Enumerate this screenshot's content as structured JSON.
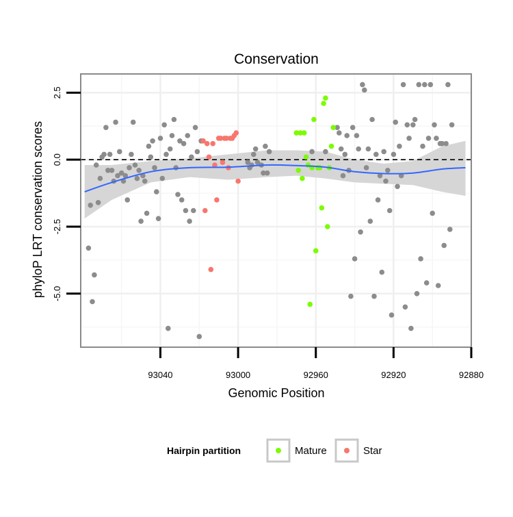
{
  "chart_data": {
    "type": "scatter",
    "title": "Conservation",
    "xlabel": "Genomic Position",
    "ylabel": "phyloP LRT conservation scores",
    "x_reversed": true,
    "xlim": [
      93081,
      92880
    ],
    "ylim": [
      -7.0,
      3.2
    ],
    "x_ticks": [
      93040,
      93000,
      92960,
      92920,
      92880
    ],
    "x_tick_labels": [
      "93040",
      "93000",
      "92960",
      "92920",
      "92880"
    ],
    "y_ticks": [
      2.5,
      0.0,
      -2.5,
      -5.0
    ],
    "y_tick_labels": [
      "2.5",
      "0.0",
      "-2.5",
      "-5.0"
    ],
    "reference_line_y": 0,
    "grid": true,
    "legend": {
      "title": "Hairpin partition",
      "position": "bottom",
      "entries": [
        {
          "label": "Mature",
          "color": "#7cfc00"
        },
        {
          "label": "Star",
          "color": "#f8766d"
        }
      ]
    },
    "colors": {
      "other": "#8c8c8c",
      "mature": "#7cfc00",
      "star": "#f8766d",
      "smooth": "#3366ff",
      "band": "#d4d4d4"
    },
    "series": [
      {
        "key": "other",
        "points": [
          [
            93077,
            -3.3
          ],
          [
            93076,
            -1.7
          ],
          [
            93075,
            -5.3
          ],
          [
            93074,
            -4.3
          ],
          [
            93073,
            -0.2
          ],
          [
            93072,
            -1.6
          ],
          [
            93071,
            -0.7
          ],
          [
            93070,
            0.1
          ],
          [
            93069,
            0.2
          ],
          [
            93068,
            1.2
          ],
          [
            93067,
            -0.4
          ],
          [
            93066,
            0.2
          ],
          [
            93065,
            -0.4
          ],
          [
            93064,
            -0.8
          ],
          [
            93063,
            1.4
          ],
          [
            93062,
            -0.6
          ],
          [
            93061,
            0.3
          ],
          [
            93060,
            -0.5
          ],
          [
            93059,
            -0.8
          ],
          [
            93058,
            -0.6
          ],
          [
            93057,
            -1.5
          ],
          [
            93056,
            -0.3
          ],
          [
            93055,
            0.2
          ],
          [
            93054,
            1.4
          ],
          [
            93053,
            -0.2
          ],
          [
            93052,
            -0.7
          ],
          [
            93051,
            -0.4
          ],
          [
            93050,
            -2.3
          ],
          [
            93049,
            -0.6
          ],
          [
            93048,
            -0.8
          ],
          [
            93047,
            -2.0
          ],
          [
            93046,
            0.5
          ],
          [
            93045,
            0.1
          ],
          [
            93044,
            0.7
          ],
          [
            93043,
            -0.3
          ],
          [
            93042,
            -1.2
          ],
          [
            93041,
            -2.2
          ],
          [
            93040,
            0.8
          ],
          [
            93039,
            -0.7
          ],
          [
            93038,
            1.3
          ],
          [
            93037,
            0.2
          ],
          [
            93036,
            -6.3
          ],
          [
            93035,
            0.4
          ],
          [
            93034,
            0.9
          ],
          [
            93033,
            1.5
          ],
          [
            93032,
            -0.3
          ],
          [
            93031,
            -1.3
          ],
          [
            93030,
            0.7
          ],
          [
            93029,
            -1.5
          ],
          [
            93028,
            0.6
          ],
          [
            93027,
            -1.9
          ],
          [
            93026,
            0.9
          ],
          [
            93025,
            -2.3
          ],
          [
            93024,
            0.1
          ],
          [
            93023,
            -1.9
          ],
          [
            93022,
            1.2
          ],
          [
            93021,
            0.3
          ],
          [
            93020,
            -6.6
          ],
          [
            93019,
            0.7
          ],
          [
            92995,
            -0.1
          ],
          [
            92994,
            -0.3
          ],
          [
            92993,
            -0.2
          ],
          [
            92992,
            0.2
          ],
          [
            92991,
            0.4
          ],
          [
            92990,
            -0.1
          ],
          [
            92988,
            -0.2
          ],
          [
            92987,
            -0.5
          ],
          [
            92986,
            0.5
          ],
          [
            92985,
            -0.5
          ],
          [
            92984,
            0.3
          ],
          [
            92962,
            0.3
          ],
          [
            92955,
            0.3
          ],
          [
            92949,
            1.2
          ],
          [
            92948,
            1.0
          ],
          [
            92947,
            0.4
          ],
          [
            92946,
            -0.6
          ],
          [
            92945,
            0.2
          ],
          [
            92944,
            0.9
          ],
          [
            92943,
            -0.4
          ],
          [
            92942,
            -5.1
          ],
          [
            92941,
            1.2
          ],
          [
            92940,
            -3.7
          ],
          [
            92939,
            0.9
          ],
          [
            92938,
            0.4
          ],
          [
            92937,
            -2.7
          ],
          [
            92936,
            2.8
          ],
          [
            92935,
            2.6
          ],
          [
            92934,
            -0.3
          ],
          [
            92933,
            0.4
          ],
          [
            92932,
            -2.3
          ],
          [
            92931,
            1.5
          ],
          [
            92930,
            -5.1
          ],
          [
            92929,
            0.2
          ],
          [
            92928,
            -1.5
          ],
          [
            92927,
            -0.6
          ],
          [
            92926,
            -4.2
          ],
          [
            92925,
            0.3
          ],
          [
            92924,
            -0.8
          ],
          [
            92923,
            -0.4
          ],
          [
            92922,
            -1.9
          ],
          [
            92921,
            -5.8
          ],
          [
            92920,
            0.2
          ],
          [
            92919,
            1.4
          ],
          [
            92918,
            -1.0
          ],
          [
            92917,
            0.5
          ],
          [
            92916,
            -0.6
          ],
          [
            92915,
            2.8
          ],
          [
            92914,
            -5.5
          ],
          [
            92913,
            1.3
          ],
          [
            92912,
            0.8
          ],
          [
            92911,
            -6.3
          ],
          [
            92910,
            1.3
          ],
          [
            92909,
            1.5
          ],
          [
            92908,
            -5.0
          ],
          [
            92907,
            2.8
          ],
          [
            92906,
            -3.7
          ],
          [
            92905,
            0.5
          ],
          [
            92904,
            2.8
          ],
          [
            92903,
            -4.6
          ],
          [
            92902,
            0.8
          ],
          [
            92901,
            2.8
          ],
          [
            92900,
            -2.0
          ],
          [
            92899,
            1.3
          ],
          [
            92898,
            0.8
          ],
          [
            92897,
            -4.7
          ],
          [
            92896,
            0.6
          ],
          [
            92895,
            0.6
          ],
          [
            92894,
            -3.2
          ],
          [
            92893,
            0.6
          ],
          [
            92892,
            2.8
          ],
          [
            92891,
            -2.6
          ],
          [
            92890,
            1.3
          ]
        ]
      },
      {
        "key": "star",
        "name": "Star",
        "points": [
          [
            93018,
            0.7
          ],
          [
            93017,
            -1.9
          ],
          [
            93016,
            0.6
          ],
          [
            93015,
            0.1
          ],
          [
            93014,
            -4.1
          ],
          [
            93013,
            0.6
          ],
          [
            93012,
            -0.2
          ],
          [
            93011,
            -1.5
          ],
          [
            93010,
            0.8
          ],
          [
            93009,
            0.8
          ],
          [
            93008,
            -0.1
          ],
          [
            93007,
            0.8
          ],
          [
            93006,
            0.8
          ],
          [
            93005,
            -0.3
          ],
          [
            93004,
            0.8
          ],
          [
            93003,
            0.8
          ],
          [
            93002,
            0.9
          ],
          [
            93001,
            1.0
          ],
          [
            93000,
            -0.8
          ]
        ]
      },
      {
        "key": "mature",
        "name": "Mature",
        "points": [
          [
            92970,
            1.0
          ],
          [
            92969,
            -0.4
          ],
          [
            92968,
            1.0
          ],
          [
            92967,
            -0.7
          ],
          [
            92966,
            1.0
          ],
          [
            92965,
            0.1
          ],
          [
            92964,
            -0.2
          ],
          [
            92963,
            -5.4
          ],
          [
            92962,
            -0.3
          ],
          [
            92961,
            1.5
          ],
          [
            92960,
            -3.4
          ],
          [
            92959,
            -0.3
          ],
          [
            92958,
            -0.3
          ],
          [
            92957,
            -1.8
          ],
          [
            92956,
            2.1
          ],
          [
            92955,
            2.3
          ],
          [
            92954,
            -2.5
          ],
          [
            92953,
            -0.3
          ],
          [
            92952,
            0.5
          ],
          [
            92951,
            1.2
          ]
        ]
      }
    ],
    "smooth_line": [
      [
        93079,
        -1.2
      ],
      [
        93065,
        -0.85
      ],
      [
        93045,
        -0.45
      ],
      [
        93025,
        -0.3
      ],
      [
        93005,
        -0.28
      ],
      [
        92985,
        -0.2
      ],
      [
        92970,
        -0.22
      ],
      [
        92955,
        -0.28
      ],
      [
        92940,
        -0.45
      ],
      [
        92925,
        -0.52
      ],
      [
        92910,
        -0.5
      ],
      [
        92895,
        -0.35
      ],
      [
        92883,
        -0.3
      ]
    ],
    "smooth_band": [
      [
        93079,
        -2.2,
        -0.2
      ],
      [
        93065,
        -1.5,
        -0.2
      ],
      [
        93045,
        -0.85,
        -0.05
      ],
      [
        93025,
        -0.65,
        0.05
      ],
      [
        93005,
        -0.75,
        0.2
      ],
      [
        92985,
        -0.65,
        0.35
      ],
      [
        92970,
        -0.6,
        0.35
      ],
      [
        92955,
        -0.7,
        0.3
      ],
      [
        92940,
        -0.85,
        0.0
      ],
      [
        92925,
        -0.9,
        -0.15
      ],
      [
        92910,
        -0.95,
        -0.05
      ],
      [
        92895,
        -1.2,
        0.5
      ],
      [
        92883,
        -1.35,
        0.7
      ]
    ]
  }
}
